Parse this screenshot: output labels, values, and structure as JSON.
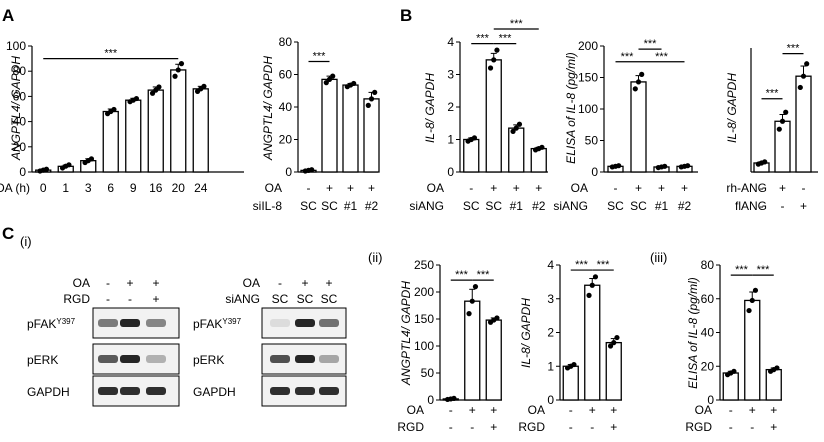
{
  "panel_letters": {
    "A": "A",
    "B": "B",
    "C": "C"
  },
  "sub_labels": {
    "i": "(i)",
    "ii": "(ii)",
    "iii": "(iii)"
  },
  "sig": "***",
  "colors": {
    "bar_fill": "#ffffff",
    "stroke": "#000000",
    "blot_band": "#1a1a1a",
    "blot_bg": "#f2f2f2"
  },
  "chart_data": [
    {
      "id": "A1",
      "type": "bar",
      "ylabel": "ANGPTL4/ GAPDH",
      "ylim": [
        0,
        100
      ],
      "yticks": [
        0,
        20,
        40,
        60,
        80,
        100
      ],
      "row_labels": [
        "OA (h)"
      ],
      "categories": [
        "0",
        "1",
        "3",
        "6",
        "9",
        "16",
        "20",
        "24"
      ],
      "values": [
        1.5,
        4.5,
        9,
        48,
        57,
        65,
        81,
        66
      ],
      "errors": [
        0.5,
        1,
        1.5,
        2,
        1.5,
        2.5,
        4.5,
        2
      ],
      "points": [
        [
          0.8,
          1.5,
          2.2
        ],
        [
          3.2,
          4.6,
          5.7
        ],
        [
          7.5,
          9,
          10.4
        ],
        [
          46.3,
          48,
          49.6
        ],
        [
          55.8,
          57,
          58.3
        ],
        [
          62.5,
          65,
          67.5
        ],
        [
          76,
          81,
          86
        ],
        [
          64,
          66,
          68
        ]
      ],
      "sig": [
        {
          "from": 0,
          "to": 6,
          "y": 90
        }
      ]
    },
    {
      "id": "A2",
      "type": "bar",
      "ylabel": "ANGPTL4/ GAPDH",
      "ylim": [
        0,
        80
      ],
      "yticks": [
        0,
        20,
        40,
        60,
        80
      ],
      "row_labels": [
        "OA",
        "siIL-8"
      ],
      "rows": [
        [
          "-",
          "+",
          "+",
          "+"
        ],
        [
          "SC",
          "SC",
          "#1",
          "#2"
        ]
      ],
      "values": [
        1,
        57,
        53.5,
        45
      ],
      "errors": [
        0.5,
        2,
        1,
        4
      ],
      "points": [
        [
          0.6,
          1,
          1.4
        ],
        [
          55,
          57,
          59
        ],
        [
          52.5,
          53.5,
          54.5
        ],
        [
          41,
          45,
          49
        ]
      ],
      "sig": [
        {
          "from": 0,
          "to": 1,
          "y": 68
        }
      ]
    },
    {
      "id": "B1",
      "type": "bar",
      "ylabel": "IL-8/ GAPDH",
      "ylim": [
        0,
        4
      ],
      "yticks": [
        0,
        1,
        2,
        3,
        4
      ],
      "row_labels": [
        "OA",
        "siANG"
      ],
      "rows": [
        [
          "-",
          "+",
          "+",
          "+"
        ],
        [
          "SC",
          "SC",
          "#1",
          "#2"
        ]
      ],
      "values": [
        1,
        3.45,
        1.35,
        0.72
      ],
      "errors": [
        0.05,
        0.2,
        0.1,
        0.04
      ],
      "points": [
        [
          0.95,
          1,
          1.05
        ],
        [
          3.2,
          3.45,
          3.75
        ],
        [
          1.25,
          1.35,
          1.47
        ],
        [
          0.68,
          0.72,
          0.76
        ]
      ],
      "sig": [
        {
          "from": 0,
          "to": 1,
          "y": 3.95
        },
        {
          "from": 1,
          "to": 2,
          "y": 3.95
        },
        {
          "from": 1,
          "to": 3,
          "y": 4.4
        }
      ]
    },
    {
      "id": "B2",
      "type": "bar",
      "ylabel": "ELISA of IL-8 (pg/ml)",
      "ylim": [
        0,
        200
      ],
      "yticks": [
        0,
        50,
        100,
        150,
        200
      ],
      "row_labels": [
        "OA",
        "siANG"
      ],
      "rows": [
        [
          "-",
          "+",
          "+",
          "+"
        ],
        [
          "SC",
          "SC",
          "#1",
          "#2"
        ]
      ],
      "values": [
        9,
        143,
        8,
        9
      ],
      "errors": [
        1,
        10,
        1,
        1
      ],
      "points": [
        [
          8,
          9,
          10
        ],
        [
          132,
          143,
          155
        ],
        [
          7,
          8,
          9
        ],
        [
          8,
          9,
          10
        ]
      ],
      "sig": [
        {
          "from": 0,
          "to": 1,
          "y": 175
        },
        {
          "from": 1,
          "to": 3,
          "y": 175
        },
        {
          "from": 1,
          "to": 2,
          "y": 195
        }
      ]
    },
    {
      "id": "B3",
      "type": "bar",
      "ylabel": "IL-8/ GAPDH",
      "ylim": [
        0,
        11
      ],
      "yticks": [],
      "row_labels": [
        "rh-ANG",
        "flANG"
      ],
      "rows": [
        [
          "-",
          "+",
          "-"
        ],
        [
          "-",
          "-",
          "+"
        ]
      ],
      "values": [
        0.8,
        4.5,
        8.5
      ],
      "errors": [
        0.1,
        0.6,
        0.9
      ],
      "points": [
        [
          0.7,
          0.8,
          0.9
        ],
        [
          3.8,
          4.5,
          5.3
        ],
        [
          7.5,
          8.5,
          9.6
        ]
      ],
      "sig": [
        {
          "from": 0,
          "to": 1,
          "y": 6.5
        },
        {
          "from": 1,
          "to": 2,
          "y": 10.5
        }
      ]
    },
    {
      "id": "Cii1",
      "type": "bar",
      "ylabel": "ANGPTL4/ GAPDH",
      "ylim": [
        0,
        250
      ],
      "yticks": [
        0,
        50,
        100,
        150,
        200,
        250
      ],
      "row_labels": [
        "OA",
        "RGD"
      ],
      "rows": [
        [
          "-",
          "+",
          "+"
        ],
        [
          "-",
          "-",
          "+"
        ]
      ],
      "values": [
        2,
        183,
        148
      ],
      "errors": [
        1,
        22,
        4
      ],
      "points": [
        [
          1,
          2,
          3
        ],
        [
          160,
          183,
          210
        ],
        [
          144,
          148,
          152
        ]
      ],
      "sig": [
        {
          "from": 0,
          "to": 1,
          "y": 222
        },
        {
          "from": 1,
          "to": 2,
          "y": 222
        }
      ]
    },
    {
      "id": "Cii2",
      "type": "bar",
      "ylabel": "IL-8/ GAPDH",
      "ylim": [
        0,
        4
      ],
      "yticks": [
        0,
        1,
        2,
        3,
        4
      ],
      "row_labels": [
        "OA",
        "RGD"
      ],
      "rows": [
        [
          "-",
          "+",
          "+"
        ],
        [
          "-",
          "-",
          "+"
        ]
      ],
      "values": [
        1,
        3.4,
        1.7
      ],
      "errors": [
        0.05,
        0.2,
        0.12
      ],
      "points": [
        [
          0.95,
          1,
          1.05
        ],
        [
          3.1,
          3.4,
          3.65
        ],
        [
          1.6,
          1.7,
          1.85
        ]
      ],
      "sig": [
        {
          "from": 0,
          "to": 1,
          "y": 3.85
        },
        {
          "from": 1,
          "to": 2,
          "y": 3.85
        }
      ]
    },
    {
      "id": "Ciii",
      "type": "bar",
      "ylabel": "ELISA of IL-8 (pg/ml)",
      "ylim": [
        0,
        80
      ],
      "yticks": [
        0,
        20,
        40,
        60,
        80
      ],
      "row_labels": [
        "OA",
        "RGD"
      ],
      "rows": [
        [
          "-",
          "+",
          "+"
        ],
        [
          "-",
          "-",
          "+"
        ]
      ],
      "values": [
        16,
        59,
        18
      ],
      "errors": [
        1,
        5,
        1
      ],
      "points": [
        [
          15,
          16,
          17
        ],
        [
          53,
          59,
          65
        ],
        [
          17,
          18,
          19
        ]
      ],
      "sig": [
        {
          "from": 0,
          "to": 1,
          "y": 74
        },
        {
          "from": 1,
          "to": 2,
          "y": 74
        }
      ]
    }
  ],
  "blots": [
    {
      "id": "blot1",
      "row_labels": [
        "OA",
        "RGD"
      ],
      "rows": [
        [
          "-",
          "+",
          "+"
        ],
        [
          "-",
          "-",
          "+"
        ]
      ],
      "bands": [
        {
          "label": "pFAK",
          "sup": "Y397",
          "intensity": [
            0.55,
            0.95,
            0.5
          ]
        },
        {
          "label": "pERK",
          "sup": "",
          "intensity": [
            0.7,
            0.95,
            0.3
          ]
        },
        {
          "label": "GAPDH",
          "sup": "",
          "intensity": [
            0.9,
            0.9,
            0.9
          ]
        }
      ]
    },
    {
      "id": "blot2",
      "row_labels": [
        "OA",
        "siANG"
      ],
      "rows": [
        [
          "-",
          "+",
          "+"
        ],
        [
          "SC",
          "SC",
          "SC"
        ]
      ],
      "bands": [
        {
          "label": "pFAK",
          "sup": "Y397",
          "intensity": [
            0.1,
            0.95,
            0.6
          ]
        },
        {
          "label": "pERK",
          "sup": "",
          "intensity": [
            0.75,
            0.95,
            0.35
          ]
        },
        {
          "label": "GAPDH",
          "sup": "",
          "intensity": [
            0.9,
            0.9,
            0.9
          ]
        }
      ]
    }
  ]
}
